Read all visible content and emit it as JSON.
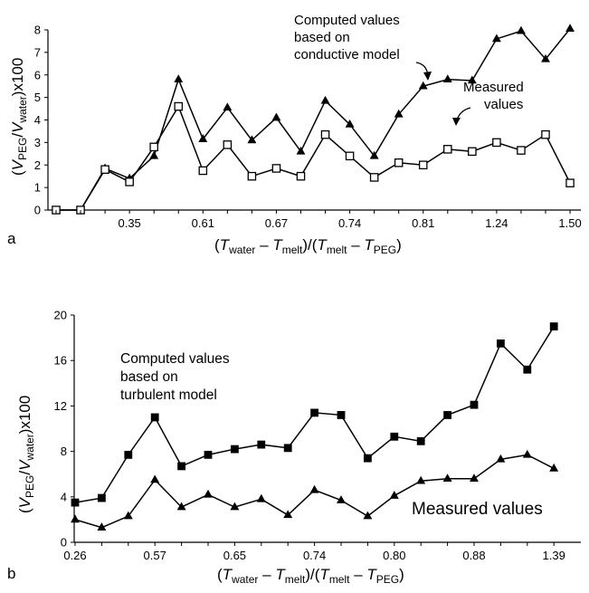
{
  "chart_data": [
    {
      "panel": "a",
      "type": "line",
      "xlabel": {
        "parts": [
          "(",
          "T",
          "water",
          " – ",
          "T",
          "melt",
          ")/(",
          "T",
          "melt",
          " – ",
          "T",
          "PEG",
          ")"
        ]
      },
      "ylabel": {
        "parts": [
          "(",
          "V",
          "PEG",
          "/",
          "V",
          "water",
          ")x100"
        ]
      },
      "ylim": [
        0,
        8
      ],
      "yticks": [
        "0",
        "1",
        "2",
        "3",
        "4",
        "5",
        "6",
        "7",
        "8"
      ],
      "xtick_labels": [
        {
          "i": 3,
          "label": "0.35"
        },
        {
          "i": 6,
          "label": "0.61"
        },
        {
          "i": 9,
          "label": "0.67"
        },
        {
          "i": 12,
          "label": "0.74"
        },
        {
          "i": 15,
          "label": "0.81"
        },
        {
          "i": 18,
          "label": "1.24"
        },
        {
          "i": 21,
          "label": "1.50"
        }
      ],
      "n_points": 22,
      "series": [
        {
          "values": [
            0,
            0,
            1.85,
            1.4,
            2.4,
            5.8,
            3.15,
            4.55,
            3.1,
            4.1,
            2.6,
            4.85,
            3.8,
            2.4,
            4.25,
            5.5,
            5.8,
            5.75,
            7.6,
            7.95,
            6.7,
            8.05
          ],
          "marker": "triangle",
          "start_index": 2
        },
        {
          "values": [
            0,
            0,
            1.8,
            1.25,
            2.8,
            4.6,
            1.75,
            2.9,
            1.5,
            1.85,
            1.5,
            3.35,
            2.4,
            1.45,
            2.1,
            2.0,
            2.7,
            2.6,
            3.0,
            2.65,
            3.35,
            1.2
          ],
          "marker": "open-square",
          "start_index": 0
        }
      ],
      "annotations": [
        {
          "lines": [
            "Computed values",
            "based on",
            "conductive model"
          ]
        },
        {
          "lines": [
            "Measured",
            "values"
          ]
        }
      ],
      "label": "a"
    },
    {
      "panel": "b",
      "type": "line",
      "xlabel": {
        "parts": [
          "(",
          "T",
          "water",
          " – ",
          "T",
          "melt",
          ")/(",
          "T",
          "melt",
          " – ",
          "T",
          "PEG",
          ")"
        ]
      },
      "ylabel": {
        "parts": [
          "(",
          "V",
          "PEG",
          "/",
          "V",
          "water",
          ")x100"
        ]
      },
      "ylim": [
        0,
        20
      ],
      "yticks": [
        "0",
        "4",
        "8",
        "12",
        "16",
        "20"
      ],
      "xtick_labels": [
        {
          "i": 0,
          "label": "0.26"
        },
        {
          "i": 3,
          "label": "0.57"
        },
        {
          "i": 6,
          "label": "0.65"
        },
        {
          "i": 9,
          "label": "0.74"
        },
        {
          "i": 12,
          "label": "0.80"
        },
        {
          "i": 15,
          "label": "0.88"
        },
        {
          "i": 18,
          "label": "1.39"
        }
      ],
      "n_points": 19,
      "series": [
        {
          "values": [
            3.5,
            3.9,
            7.7,
            11.0,
            6.7,
            7.7,
            8.2,
            8.6,
            8.3,
            11.4,
            11.2,
            7.4,
            9.3,
            8.9,
            11.2,
            12.1,
            17.5,
            15.2,
            19.0
          ],
          "marker": "filled-square"
        },
        {
          "values": [
            2.0,
            1.3,
            2.3,
            5.5,
            3.1,
            4.2,
            3.1,
            3.8,
            2.4,
            4.6,
            3.7,
            2.3,
            4.1,
            5.4,
            5.6,
            5.6,
            7.3,
            7.7,
            6.5
          ],
          "marker": "triangle"
        }
      ],
      "annotations": [
        {
          "lines": [
            "Computed values",
            "based on",
            "turbulent model"
          ]
        },
        {
          "lines": [
            "Measured values"
          ]
        }
      ],
      "label": "b"
    }
  ]
}
